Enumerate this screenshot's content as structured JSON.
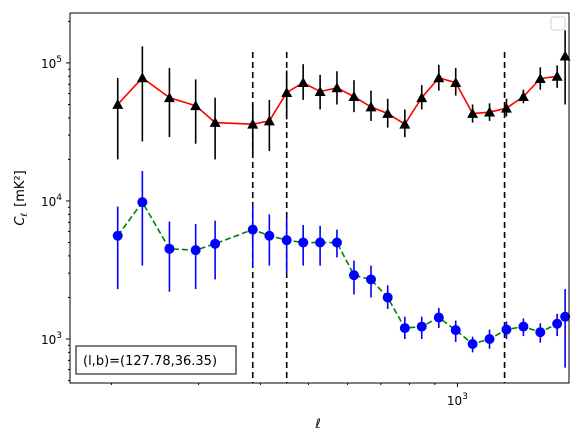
{
  "chart_data": {
    "type": "line",
    "xscale": "log",
    "yscale": "log",
    "xlim": [
      165,
      1680
    ],
    "ylim": [
      480,
      230000
    ],
    "xlabel": "ℓ",
    "ylabel_main": "C",
    "ylabel_sub": "ℓ",
    "ylabel_unit": "[mK²]",
    "x_tick_labels": [
      {
        "value": 1000,
        "label": "10",
        "exp": "3"
      }
    ],
    "y_tick_labels": [
      {
        "value": 1000,
        "label": "10",
        "exp": "3"
      },
      {
        "value": 10000,
        "label": "10",
        "exp": "4"
      },
      {
        "value": 100000,
        "label": "10",
        "exp": "5"
      }
    ],
    "grid": false,
    "legend": "top-right (empty)",
    "vlines": [
      {
        "x": 386,
        "ymin": 480,
        "ymax": 120000
      },
      {
        "x": 452,
        "ymin": 480,
        "ymax": 120000
      },
      {
        "x": 1245,
        "ymin": 480,
        "ymax": 120000
      }
    ],
    "annotation": "(l,b)=(127.78,36.35)",
    "series": [
      {
        "line_color": "#ff0000",
        "marker_color": "#000000",
        "marker": "triangle",
        "line_style": "solid",
        "x": [
          206,
          231,
          262,
          296,
          324,
          386,
          417,
          452,
          488,
          528,
          571,
          618,
          669,
          723,
          783,
          847,
          917,
          992,
          1073,
          1161,
          1256,
          1359,
          1470,
          1590
        ],
        "y": [
          50000,
          78000,
          56000,
          49000,
          37000,
          36000,
          38000,
          61000,
          72000,
          62000,
          66000,
          57000,
          48000,
          43000,
          36000,
          56000,
          78000,
          72000,
          43000,
          44000,
          47000,
          57000,
          77000,
          80000
        ],
        "y_low": [
          20000,
          27000,
          29000,
          26000,
          20000,
          21000,
          23000,
          39000,
          54000,
          46000,
          50000,
          44000,
          38000,
          34000,
          29000,
          46000,
          63000,
          58000,
          37000,
          38000,
          41000,
          51000,
          64000,
          66000
        ],
        "y_high": [
          78000,
          132000,
          92000,
          76000,
          56000,
          52000,
          54000,
          88000,
          98000,
          82000,
          87000,
          75000,
          63000,
          55000,
          46000,
          69000,
          97000,
          92000,
          50000,
          51000,
          55000,
          64000,
          93000,
          96000
        ],
        "extra_point": {
          "x": 1650,
          "y": 112000,
          "y_low": 50000,
          "y_high": 172000
        }
      },
      {
        "line_color": "#008000",
        "marker_color": "#0000ff",
        "marker": "circle",
        "line_style": "dashed",
        "x": [
          206,
          231,
          262,
          296,
          324,
          386,
          417,
          452,
          488,
          528,
          571,
          618,
          669,
          723,
          783,
          847,
          917,
          992,
          1073,
          1161,
          1256,
          1359,
          1470,
          1590
        ],
        "y": [
          5600,
          9800,
          4500,
          4400,
          4900,
          6200,
          5600,
          5200,
          5000,
          5000,
          5000,
          2900,
          2700,
          2000,
          1200,
          1230,
          1430,
          1160,
          920,
          1000,
          1170,
          1230,
          1120,
          1290
        ],
        "y_low": [
          2300,
          3400,
          2200,
          2300,
          2700,
          3300,
          3400,
          3000,
          3400,
          3400,
          3900,
          2100,
          2000,
          1650,
          1000,
          1000,
          1200,
          950,
          800,
          850,
          1000,
          1050,
          940,
          1050
        ],
        "y_high": [
          9100,
          16500,
          7100,
          6800,
          7200,
          9200,
          8000,
          7600,
          6700,
          6600,
          6200,
          3700,
          3400,
          2450,
          1450,
          1450,
          1680,
          1360,
          1040,
          1170,
          1340,
          1410,
          1300,
          1520
        ],
        "extra_point": {
          "x": 1650,
          "y": 1450,
          "y_low": 620,
          "y_high": 2300
        }
      }
    ]
  }
}
